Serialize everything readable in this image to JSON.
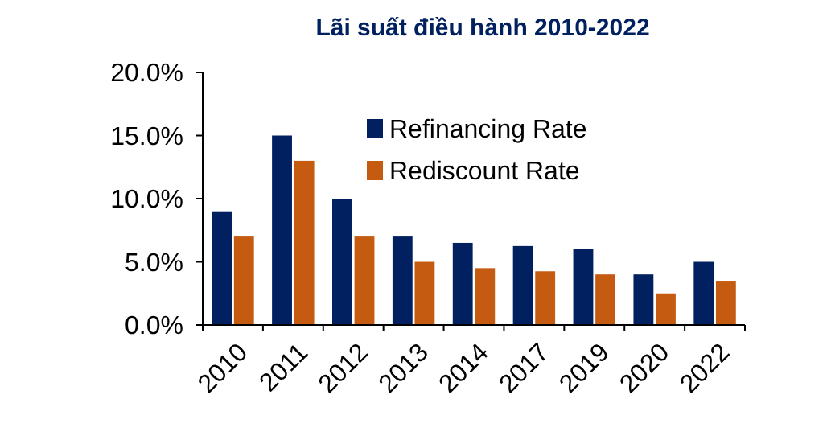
{
  "chart_data": {
    "type": "bar",
    "title": "Lãi suất điều hành 2010-2022",
    "categories": [
      "2010",
      "2011",
      "2012",
      "2013",
      "2014",
      "2017",
      "2019",
      "2020",
      "2022"
    ],
    "series": [
      {
        "name": "Refinancing Rate",
        "color": "#002060",
        "values": [
          9,
          15,
          10,
          7,
          6.5,
          6.25,
          6,
          4,
          5
        ]
      },
      {
        "name": "Rediscount Rate",
        "color": "#c55a11",
        "values": [
          7,
          13,
          7,
          5,
          4.5,
          4.25,
          4,
          2.5,
          3.5
        ]
      }
    ],
    "ylim": [
      0,
      20
    ],
    "yticks": [
      {
        "value": 0,
        "label": "0.0%"
      },
      {
        "value": 5,
        "label": "5.0%"
      },
      {
        "value": 10,
        "label": "10.0%"
      },
      {
        "value": 15,
        "label": "15.0%"
      },
      {
        "value": 20,
        "label": "20.0%"
      }
    ],
    "grid": false,
    "legend": "top right"
  }
}
